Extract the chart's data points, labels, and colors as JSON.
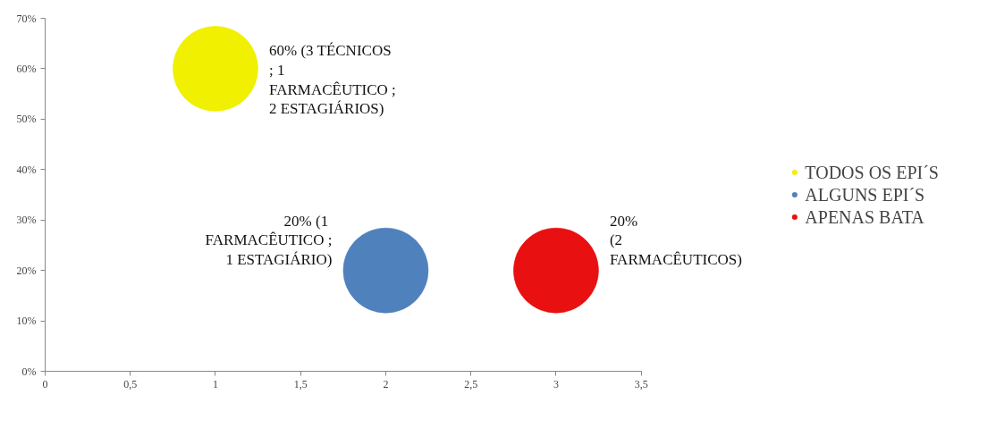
{
  "chart_data": {
    "type": "bubble",
    "series": [
      {
        "name": "TODOS OS EPI´S",
        "color": "#f0f000",
        "x": [
          1
        ],
        "values": [
          60
        ],
        "sizes": [
          1
        ],
        "value_labels": [
          "60%  (3 TÉCNICOS\n; 1\nFARMACÊUTICO ;\n2 ESTAGIÁRIOS)"
        ]
      },
      {
        "name": "ALGUNS EPI´S",
        "color": "#4f81bd",
        "x": [
          2
        ],
        "values": [
          20
        ],
        "sizes": [
          1
        ],
        "value_labels": [
          "20%  (1\nFARMACÊUTICO ;\n1 ESTAGIÁRIO)"
        ]
      },
      {
        "name": "APENAS BATA",
        "color": "#e81010",
        "x": [
          3
        ],
        "values": [
          20
        ],
        "sizes": [
          1
        ],
        "value_labels": [
          "20%\n(2\nFARMACÊUTICOS)"
        ]
      }
    ],
    "xlim": [
      0,
      3.5
    ],
    "xticks": [
      0,
      {
        "value": 0.5,
        "label": "0,5"
      },
      1,
      {
        "value": 1.5,
        "label": "1,5"
      },
      2,
      {
        "value": 2.5,
        "label": "2,5"
      },
      3,
      {
        "value": 3.5,
        "label": "3,5"
      }
    ],
    "ylim": [
      0,
      70
    ],
    "yticks": [
      {
        "value": 0,
        "label": "0%"
      },
      {
        "value": 10,
        "label": "10%"
      },
      {
        "value": 20,
        "label": "20%"
      },
      {
        "value": 30,
        "label": "30%"
      },
      {
        "value": 40,
        "label": "40%"
      },
      {
        "value": 50,
        "label": "50%"
      },
      {
        "value": 60,
        "label": "60%"
      },
      {
        "value": 70,
        "label": "70%"
      }
    ],
    "grid": false,
    "legend": "right"
  }
}
